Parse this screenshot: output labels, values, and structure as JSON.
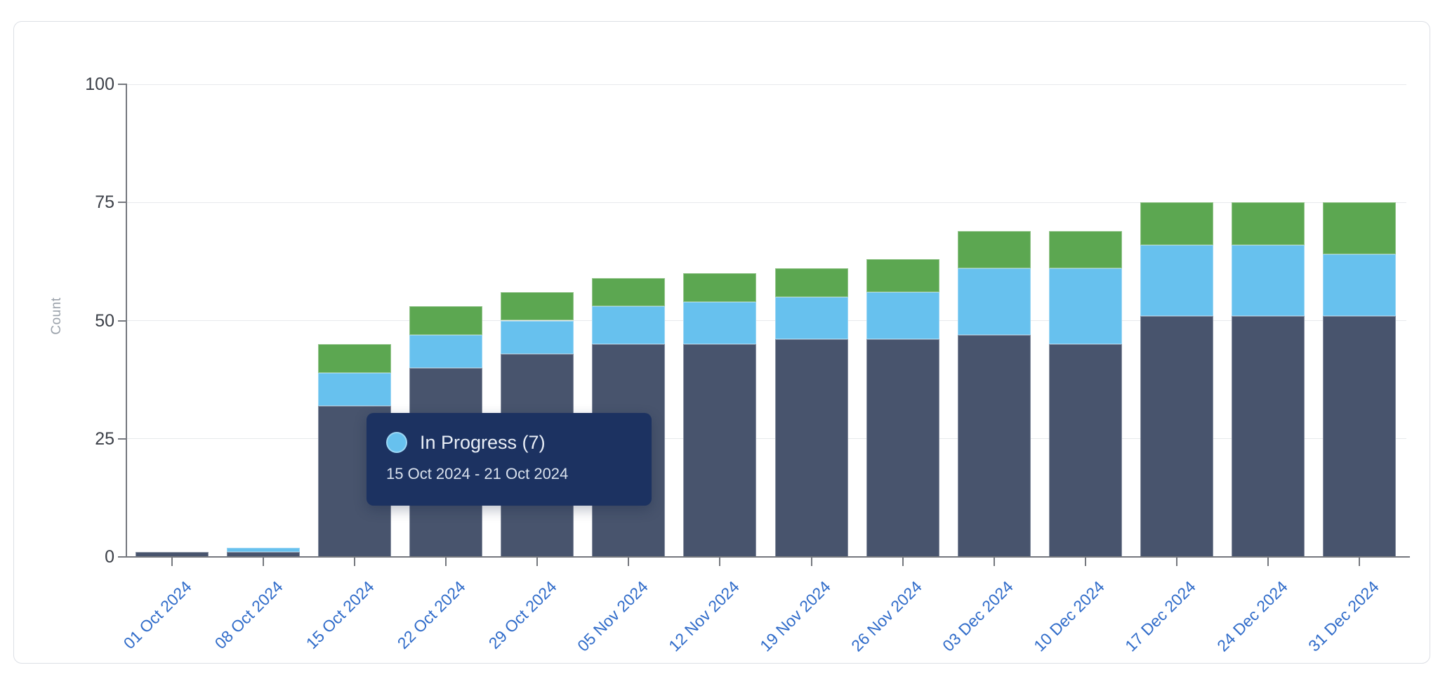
{
  "chart_data": {
    "type": "bar",
    "stacked": true,
    "title": "",
    "xlabel": "",
    "ylabel": "Count",
    "ylim": [
      0,
      100
    ],
    "y_ticks": [
      0,
      25,
      50,
      75,
      100
    ],
    "grid": "horizontal",
    "legend": "none",
    "x_label_rotation_deg": -45,
    "categories": [
      "01 Oct 2024",
      "08 Oct 2024",
      "15 Oct 2024",
      "22 Oct 2024",
      "29 Oct 2024",
      "05 Nov 2024",
      "12 Nov 2024",
      "19 Nov 2024",
      "26 Nov 2024",
      "03 Dec 2024",
      "10 Dec 2024",
      "17 Dec 2024",
      "24 Dec 2024",
      "31 Dec 2024"
    ],
    "series": [
      {
        "name": "",
        "role": "bottom",
        "color": "#48546D",
        "values": [
          1,
          1,
          32,
          40,
          43,
          45,
          45,
          46,
          46,
          47,
          45,
          51,
          51,
          51
        ]
      },
      {
        "name": "In Progress",
        "role": "middle",
        "color": "#67C1EE",
        "values": [
          0,
          1,
          7,
          7,
          7,
          8,
          9,
          9,
          10,
          14,
          16,
          15,
          15,
          13
        ]
      },
      {
        "name": "",
        "role": "top",
        "color": "#5CA751",
        "values": [
          0,
          0,
          6,
          6,
          6,
          6,
          6,
          6,
          7,
          8,
          8,
          9,
          9,
          11
        ]
      }
    ],
    "totals": [
      1,
      2,
      45,
      53,
      56,
      59,
      60,
      61,
      63,
      69,
      69,
      75,
      75,
      75
    ]
  },
  "tooltip": {
    "series_label": "In Progress (7)",
    "value": 7,
    "date_range": "15 Oct 2024 - 21 Oct 2024",
    "marker_color": "#67C1EE",
    "bg_color": "#1C3261"
  },
  "colors": {
    "bar_navy": "#48546D",
    "bar_blue": "#67C1EE",
    "bar_green": "#5CA751",
    "tooltip_bg": "#1C3261",
    "x_label": "#2F6BC9",
    "y_label": "#3C4048",
    "count_label": "#9AA1AA",
    "axis": "#75787E",
    "grid": "#E7E9EC",
    "card_border": "#DCDFE5"
  }
}
